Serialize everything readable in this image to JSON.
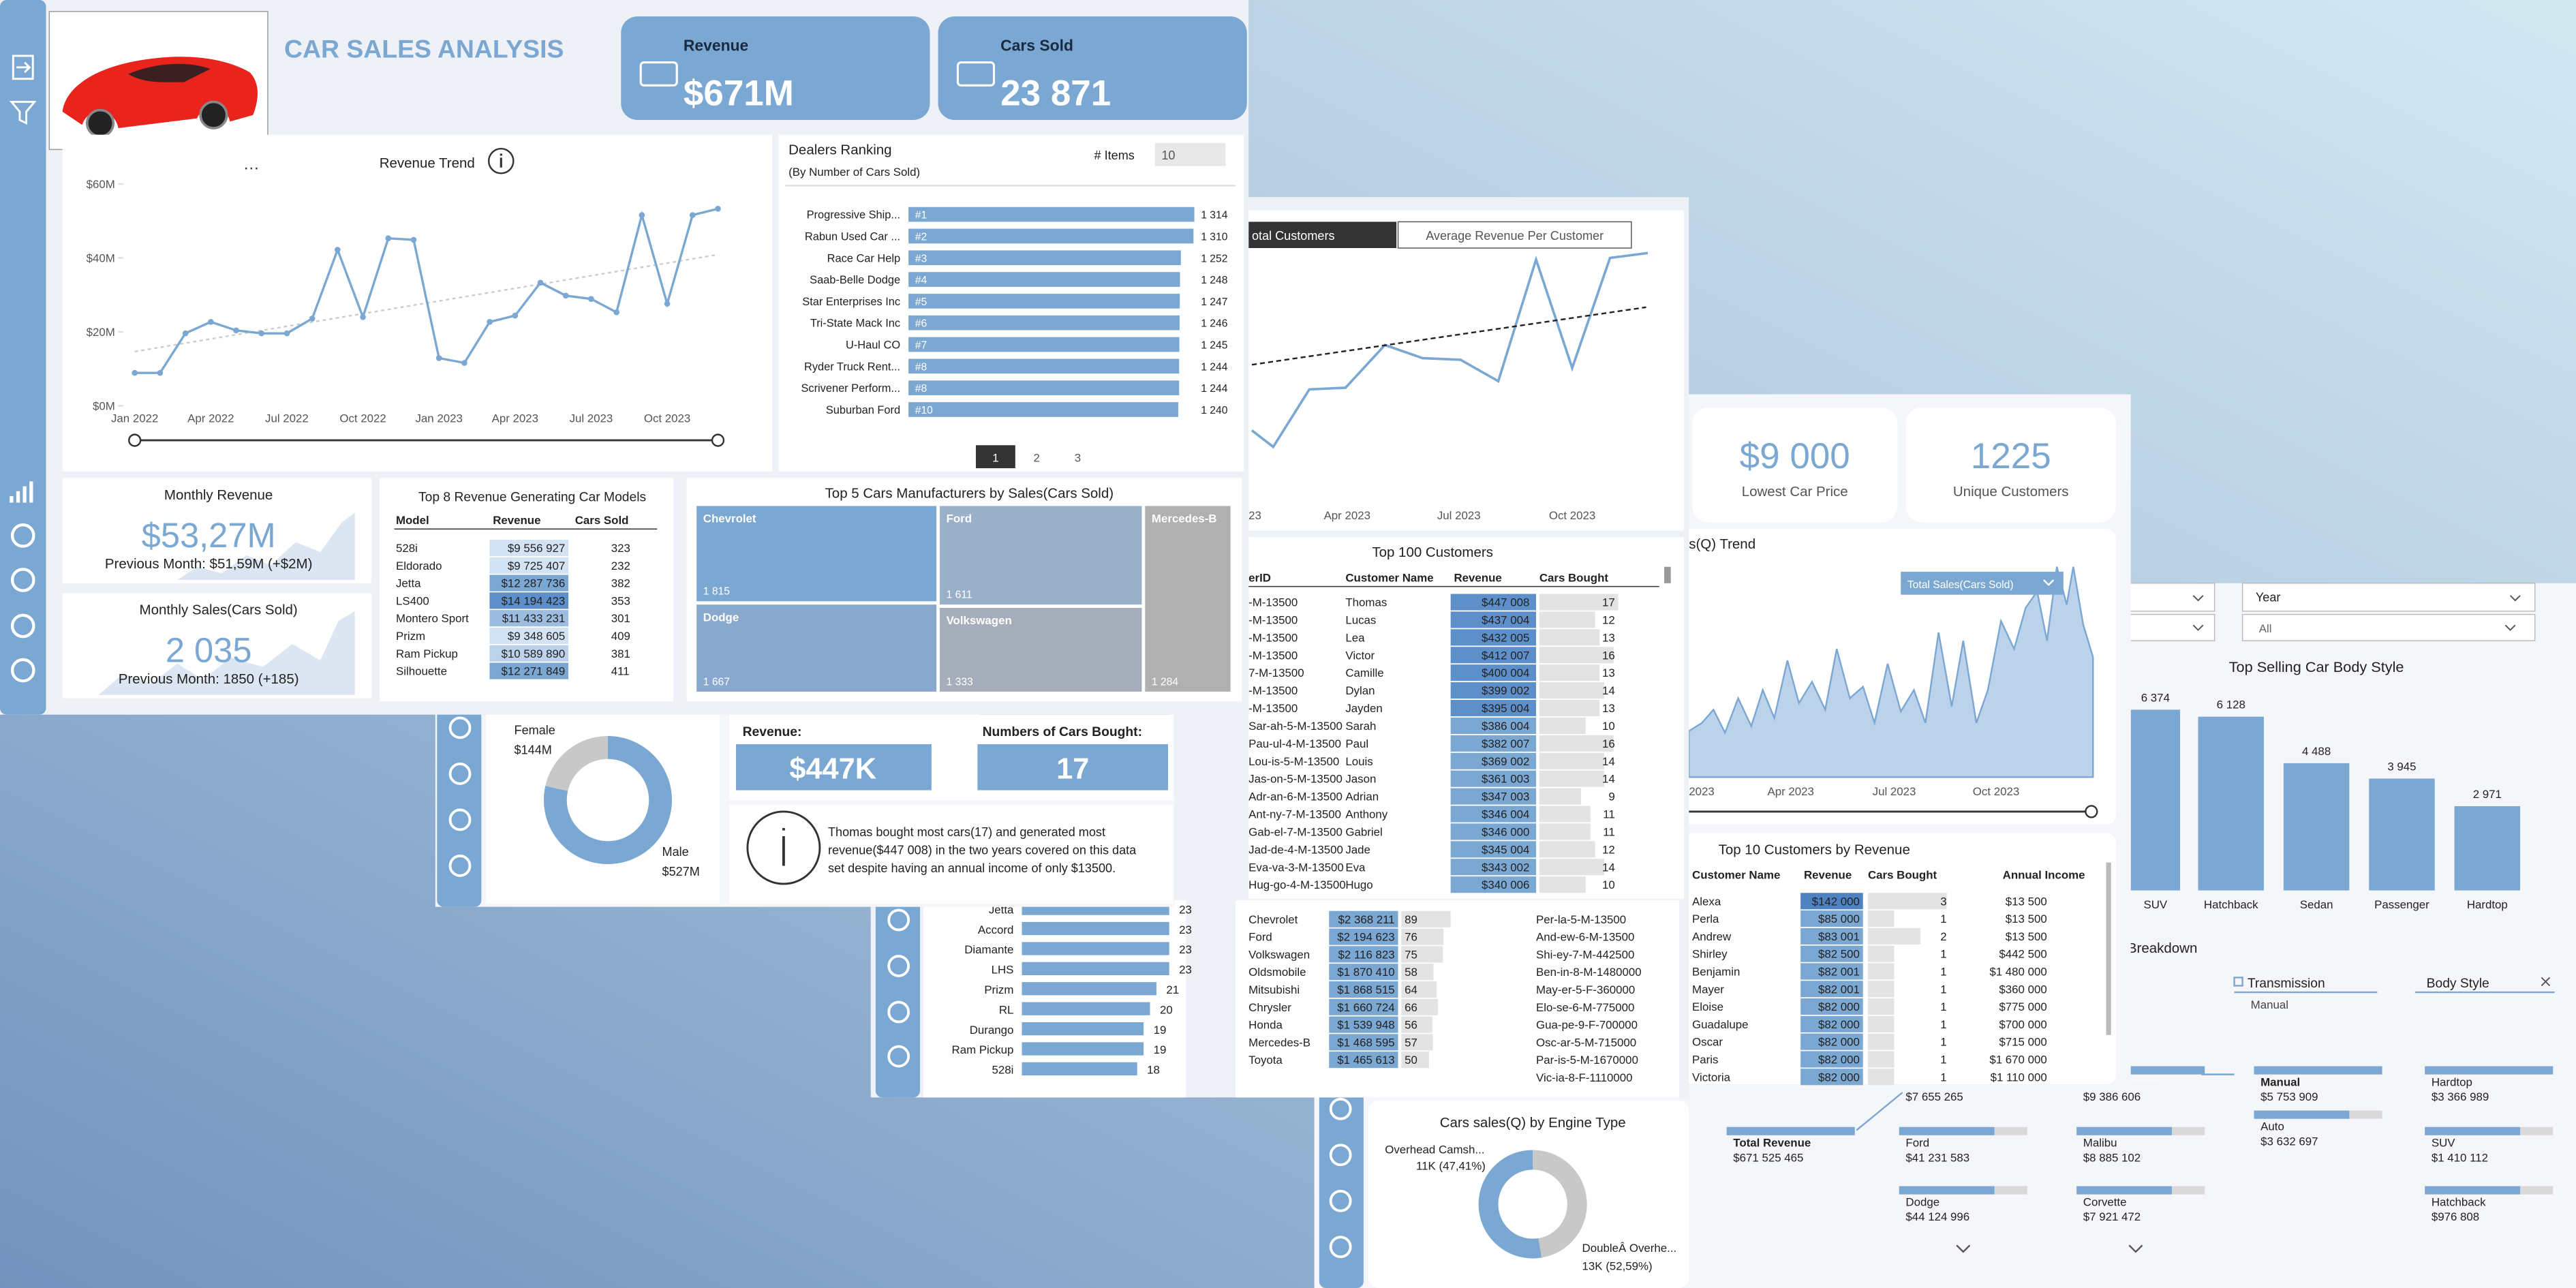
{
  "main": {
    "title": "CAR SALES ANALYSIS",
    "kpis": [
      {
        "label": "Revenue",
        "value": "$671M"
      },
      {
        "label": "Cars Sold",
        "value": "23 871"
      }
    ],
    "revenue_trend": {
      "title": "Revenue Trend",
      "ylim": [
        0,
        60
      ],
      "yticks": [
        {
          "value": 60,
          "label": "$60M"
        },
        {
          "value": 40,
          "label": "$40M"
        },
        {
          "value": 20,
          "label": "$20M"
        },
        {
          "value": 0,
          "label": "$0M"
        }
      ],
      "x_labels": [
        "Jan 2022",
        "Apr 2022",
        "Jul 2022",
        "Oct 2022",
        "Jan 2023",
        "Apr 2023",
        "Jul 2023",
        "Oct 2023"
      ],
      "values": [
        8.9,
        8.9,
        19.6,
        22.7,
        20.4,
        19.6,
        19.6,
        23.6,
        42.2,
        24,
        45.3,
        44.9,
        12.9,
        11.6,
        22.7,
        24.4,
        33.3,
        29.8,
        28.9,
        25.3,
        51.6,
        27.6,
        51.6,
        53.3
      ]
    },
    "dealers": {
      "title": "Dealers Ranking",
      "subtitle": "(By Number of Cars Sold)",
      "items_label": "# Items",
      "items_value": "10",
      "rows": [
        {
          "name": "Progressive Ship...",
          "rank": "#1",
          "cars": {
            "value": 1314,
            "label": "1 314"
          }
        },
        {
          "name": "Rabun Used Car ...",
          "rank": "#2",
          "cars": {
            "value": 1310,
            "label": "1 310"
          }
        },
        {
          "name": "Race Car Help",
          "rank": "#3",
          "cars": {
            "value": 1252,
            "label": "1 252"
          }
        },
        {
          "name": "Saab-Belle Dodge",
          "rank": "#4",
          "cars": {
            "value": 1248,
            "label": "1 248"
          }
        },
        {
          "name": "Star Enterprises Inc",
          "rank": "#5",
          "cars": {
            "value": 1247,
            "label": "1 247"
          }
        },
        {
          "name": "Tri-State Mack Inc",
          "rank": "#6",
          "cars": {
            "value": 1246,
            "label": "1 246"
          }
        },
        {
          "name": "U-Haul CO",
          "rank": "#7",
          "cars": {
            "value": 1245,
            "label": "1 245"
          }
        },
        {
          "name": "Ryder Truck Rent...",
          "rank": "#8",
          "cars": {
            "value": 1244,
            "label": "1 244"
          }
        },
        {
          "name": "Scrivener Perform...",
          "rank": "#8",
          "cars": {
            "value": 1244,
            "label": "1 244"
          }
        },
        {
          "name": "Suburban Ford",
          "rank": "#10",
          "cars": {
            "value": 1240,
            "label": "1 240"
          }
        }
      ],
      "pages": [
        "1",
        "2",
        "3"
      ]
    },
    "monthly_revenue": {
      "title": "Monthly Revenue",
      "value": "$53,27M",
      "previous": "Previous Month: $51,59M (+$2M)"
    },
    "monthly_sales": {
      "title": "Monthly Sales(Cars Sold)",
      "value": "2 035",
      "previous": "Previous Month: 1850 (+185)"
    },
    "top_models": {
      "title": "Top 8 Revenue Generating Car Models",
      "headers": [
        "Model",
        "Revenue",
        "Cars Sold"
      ],
      "rows": [
        [
          "528i",
          "$9 556 927",
          323
        ],
        [
          "Eldorado",
          "$9 725 407",
          232
        ],
        [
          "Jetta",
          "$12 287 736",
          382
        ],
        [
          "LS400",
          "$14 194 423",
          353
        ],
        [
          "Montero Sport",
          "$11 433 231",
          301
        ],
        [
          "Prizm",
          "$9 348 605",
          409
        ],
        [
          "Ram Pickup",
          "$10 589 890",
          381
        ],
        [
          "Silhouette",
          "$12 271 849",
          411
        ]
      ]
    },
    "manufacturers": {
      "title": "Top 5 Cars Manufacturers by Sales(Cars Sold)",
      "items": [
        {
          "name": "Chevrolet",
          "value": {
            "value": 1815,
            "label": "1 815"
          }
        },
        {
          "name": "Dodge",
          "value": {
            "value": 1667,
            "label": "1 667"
          }
        },
        {
          "name": "Ford",
          "value": {
            "value": 1611,
            "label": "1 611"
          }
        },
        {
          "name": "Volkswagen",
          "value": {
            "value": 1333,
            "label": "1 333"
          }
        },
        {
          "name": "Mercedes-B",
          "value": {
            "value": 1284,
            "label": "1 284"
          }
        }
      ]
    }
  },
  "customer": {
    "gender": [
      {
        "name": "Female",
        "value": {
          "value": 144,
          "label": "$144M"
        }
      },
      {
        "name": "Male",
        "value": {
          "value": 527,
          "label": "$527M"
        }
      }
    ],
    "revenue_label": "Revenue:",
    "revenue": "$447K",
    "cars_label": "Numbers of Cars Bought:",
    "cars": "17",
    "info": [
      "Thomas bought most cars(17) and generated most",
      "revenue($447 008) in the two years covered on this data",
      "set despite having an annual income of only $13500."
    ]
  },
  "customers_page": {
    "tabs": [
      "otal Customers",
      "Average Revenue Per Customer"
    ],
    "x_labels": [
      "23",
      "Apr 2023",
      "Jul 2023",
      "Oct 2023"
    ],
    "top100": {
      "title": "Top 100 Customers",
      "headers": [
        "erID",
        "Customer Name",
        "Revenue",
        "Cars Bought"
      ],
      "rows": [
        [
          "-M-13500",
          "Thomas",
          "$447 008",
          17
        ],
        [
          "-M-13500",
          "Lucas",
          "$437 004",
          12
        ],
        [
          "-M-13500",
          "Lea",
          "$432 005",
          13
        ],
        [
          "-M-13500",
          "Victor",
          "$412 007",
          16
        ],
        [
          "7-M-13500",
          "Camille",
          "$400 004",
          13
        ],
        [
          "-M-13500",
          "Dylan",
          "$399 002",
          14
        ],
        [
          "-M-13500",
          "Jayden",
          "$395 004",
          13
        ],
        [
          "Sar-ah-5-M-13500",
          "Sarah",
          "$386 004",
          10
        ],
        [
          "Pau-ul-4-M-13500",
          "Paul",
          "$382 007",
          16
        ],
        [
          "Lou-is-5-M-13500",
          "Louis",
          "$369 002",
          14
        ],
        [
          "Jas-on-5-M-13500",
          "Jason",
          "$361 003",
          14
        ],
        [
          "Adr-an-6-M-13500",
          "Adrian",
          "$347 003",
          9
        ],
        [
          "Ant-ny-7-M-13500",
          "Anthony",
          "$346 004",
          11
        ],
        [
          "Gab-el-7-M-13500",
          "Gabriel",
          "$346 000",
          11
        ],
        [
          "Jad-de-4-M-13500",
          "Jade",
          "$345 004",
          12
        ],
        [
          "Eva-va-3-M-13500",
          "Eva",
          "$343 002",
          14
        ],
        [
          "Hug-go-4-M-13500",
          "Hugo",
          "$340 006",
          10
        ]
      ]
    },
    "model_bars": [
      {
        "name": "Jetta",
        "value": 23
      },
      {
        "name": "Accord",
        "value": 23
      },
      {
        "name": "Diamante",
        "value": 23
      },
      {
        "name": "LHS",
        "value": 23
      },
      {
        "name": "Prizm",
        "value": 21
      },
      {
        "name": "RL",
        "value": 20
      },
      {
        "name": "Durango",
        "value": 19
      },
      {
        "name": "Ram Pickup",
        "value": 19
      },
      {
        "name": "528i",
        "value": 18
      }
    ],
    "brand_rows": [
      [
        "Chevrolet",
        "$2 368 211",
        89
      ],
      [
        "Ford",
        "$2 194 623",
        76
      ],
      [
        "Volkswagen",
        "$2 116 823",
        75
      ],
      [
        "Oldsmobile",
        "$1 870 410",
        58
      ],
      [
        "Mitsubishi",
        "$1 868 515",
        64
      ],
      [
        "Chrysler",
        "$1 660 724",
        66
      ],
      [
        "Honda",
        "$1 539 948",
        56
      ],
      [
        "Mercedes-B",
        "$1 468 595",
        57
      ],
      [
        "Toyota",
        "$1 465 613",
        50
      ]
    ],
    "ids": [
      "Per-la-5-M-13500",
      "And-ew-6-M-13500",
      "Shi-ey-7-M-442500",
      "Ben-in-8-M-1480000",
      "May-er-5-F-360000",
      "Elo-se-6-M-775000",
      "Gua-pe-9-F-700000",
      "Osc-ar-5-M-715000",
      "Par-is-5-M-1670000",
      "Vic-ia-8-F-1110000"
    ]
  },
  "sales_page": {
    "summary": [
      {
        "value": "$9 000",
        "label": "Lowest Car Price"
      },
      {
        "value": "1225",
        "label": "Unique Customers"
      }
    ],
    "trend_title": "s(Q) Trend",
    "dropdown": "Total Sales(Cars Sold)",
    "x_labels": [
      "2023",
      "Apr 2023",
      "Jul 2023",
      "Oct 2023"
    ],
    "top10": {
      "title": "Top 10 Customers by Revenue",
      "headers": [
        "Customer Name",
        "Revenue",
        "Cars Bought",
        "Annual Income"
      ],
      "rows": [
        [
          "Alexa",
          "$142 000",
          3,
          "$13 500"
        ],
        [
          "Perla",
          "$85 000",
          1,
          "$13 500"
        ],
        [
          "Andrew",
          "$83 001",
          2,
          "$13 500"
        ],
        [
          "Shirley",
          "$82 500",
          1,
          "$442 500"
        ],
        [
          "Benjamin",
          "$82 001",
          1,
          "$1 480 000"
        ],
        [
          "Mayer",
          "$82 001",
          1,
          "$360 000"
        ],
        [
          "Eloise",
          "$82 000",
          1,
          "$775 000"
        ],
        [
          "Guadalupe",
          "$82 000",
          1,
          "$700 000"
        ],
        [
          "Oscar",
          "$82 000",
          1,
          "$715 000"
        ],
        [
          "Paris",
          "$82 000",
          1,
          "$1 670 000"
        ],
        [
          "Victoria",
          "$82 000",
          1,
          "$1 110 000"
        ]
      ]
    },
    "year_label": "Year",
    "year_value": "All",
    "body_style": {
      "title": "Top Selling Car Body Style",
      "items": [
        {
          "name": "SUV",
          "value": {
            "value": 6374,
            "label": "6 374"
          }
        },
        {
          "name": "Hatchback",
          "value": {
            "value": 6128,
            "label": "6 128"
          }
        },
        {
          "name": "Sedan",
          "value": {
            "value": 4488,
            "label": "4 488"
          }
        },
        {
          "name": "Passenger",
          "value": {
            "value": 3945,
            "label": "3 945"
          }
        },
        {
          "name": "Hardtop",
          "value": {
            "value": 2971,
            "label": "2 971"
          }
        }
      ]
    },
    "breakdown": {
      "title": "Breakdown",
      "level1": "Transmission",
      "level1_value": "Manual",
      "level2": "Body Style"
    },
    "engine": {
      "title": "Cars sales(Q) by Engine Type",
      "items": [
        {
          "name": "Overhead Camsh...",
          "value": {
            "value": 47.41,
            "label": "11K (47,41%)"
          }
        },
        {
          "name": "DoubleÂ Overhe...",
          "value": {
            "value": 52.59,
            "label": "13K (52,59%)"
          }
        }
      ]
    },
    "tree": [
      [
        {
          "name": "Total Revenue",
          "value": "$671 525 465"
        }
      ],
      [
        {
          "value": "$7 655 265"
        },
        {
          "name": "Ford",
          "value": "$41 231 583"
        },
        {
          "name": "Dodge",
          "value": "$44 124 996"
        }
      ],
      [
        {
          "value": "$9 386 606"
        },
        {
          "name": "Malibu",
          "value": "$8 885 102"
        },
        {
          "name": "Corvette",
          "value": "$7 921 472"
        }
      ],
      [
        {
          "name": "Manual",
          "value": "$5 753 909"
        },
        {
          "name": "Auto",
          "value": "$3 632 697"
        }
      ],
      [
        {
          "name": "Hardtop",
          "value": "$3 366 989"
        },
        {
          "name": "SUV",
          "value": "$1 410 112"
        },
        {
          "name": "Hatchback",
          "value": "$976 808"
        }
      ]
    ]
  }
}
